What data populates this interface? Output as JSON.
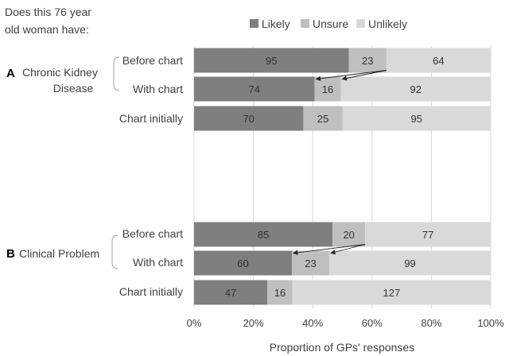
{
  "chart_data": {
    "type": "bar",
    "orientation": "horizontal",
    "stacked": "percent",
    "title_lines": [
      "Does this 76 year",
      "old woman have:"
    ],
    "xlabel": "Proportion of GPs' responses",
    "xlim": [
      0,
      100
    ],
    "xticks": [
      "0%",
      "20%",
      "40%",
      "60%",
      "80%",
      "100%"
    ],
    "legend": {
      "placement": "top",
      "entries": [
        {
          "name": "Likely",
          "color": "#7f7f7f"
        },
        {
          "name": "Unsure",
          "color": "#bfbfbf"
        },
        {
          "name": "Unlikely",
          "color": "#d9d9d9"
        }
      ]
    },
    "groups": [
      {
        "letter": "A",
        "name_lines": [
          "Chronic Kidney",
          "Disease"
        ],
        "rows": [
          {
            "label": "Before chart",
            "values": [
              95,
              23,
              64
            ]
          },
          {
            "label": "With chart",
            "values": [
              74,
              16,
              92
            ]
          },
          {
            "label": "Chart initially",
            "values": [
              70,
              25,
              95
            ]
          }
        ]
      },
      {
        "letter": "B",
        "name_lines": [
          "Clinical Problem"
        ],
        "rows": [
          {
            "label": "Before chart",
            "values": [
              85,
              20,
              77
            ]
          },
          {
            "label": "With chart",
            "values": [
              60,
              23,
              99
            ]
          },
          {
            "label": "Chart initially",
            "values": [
              47,
              16,
              127
            ]
          }
        ]
      }
    ],
    "grid": true
  }
}
